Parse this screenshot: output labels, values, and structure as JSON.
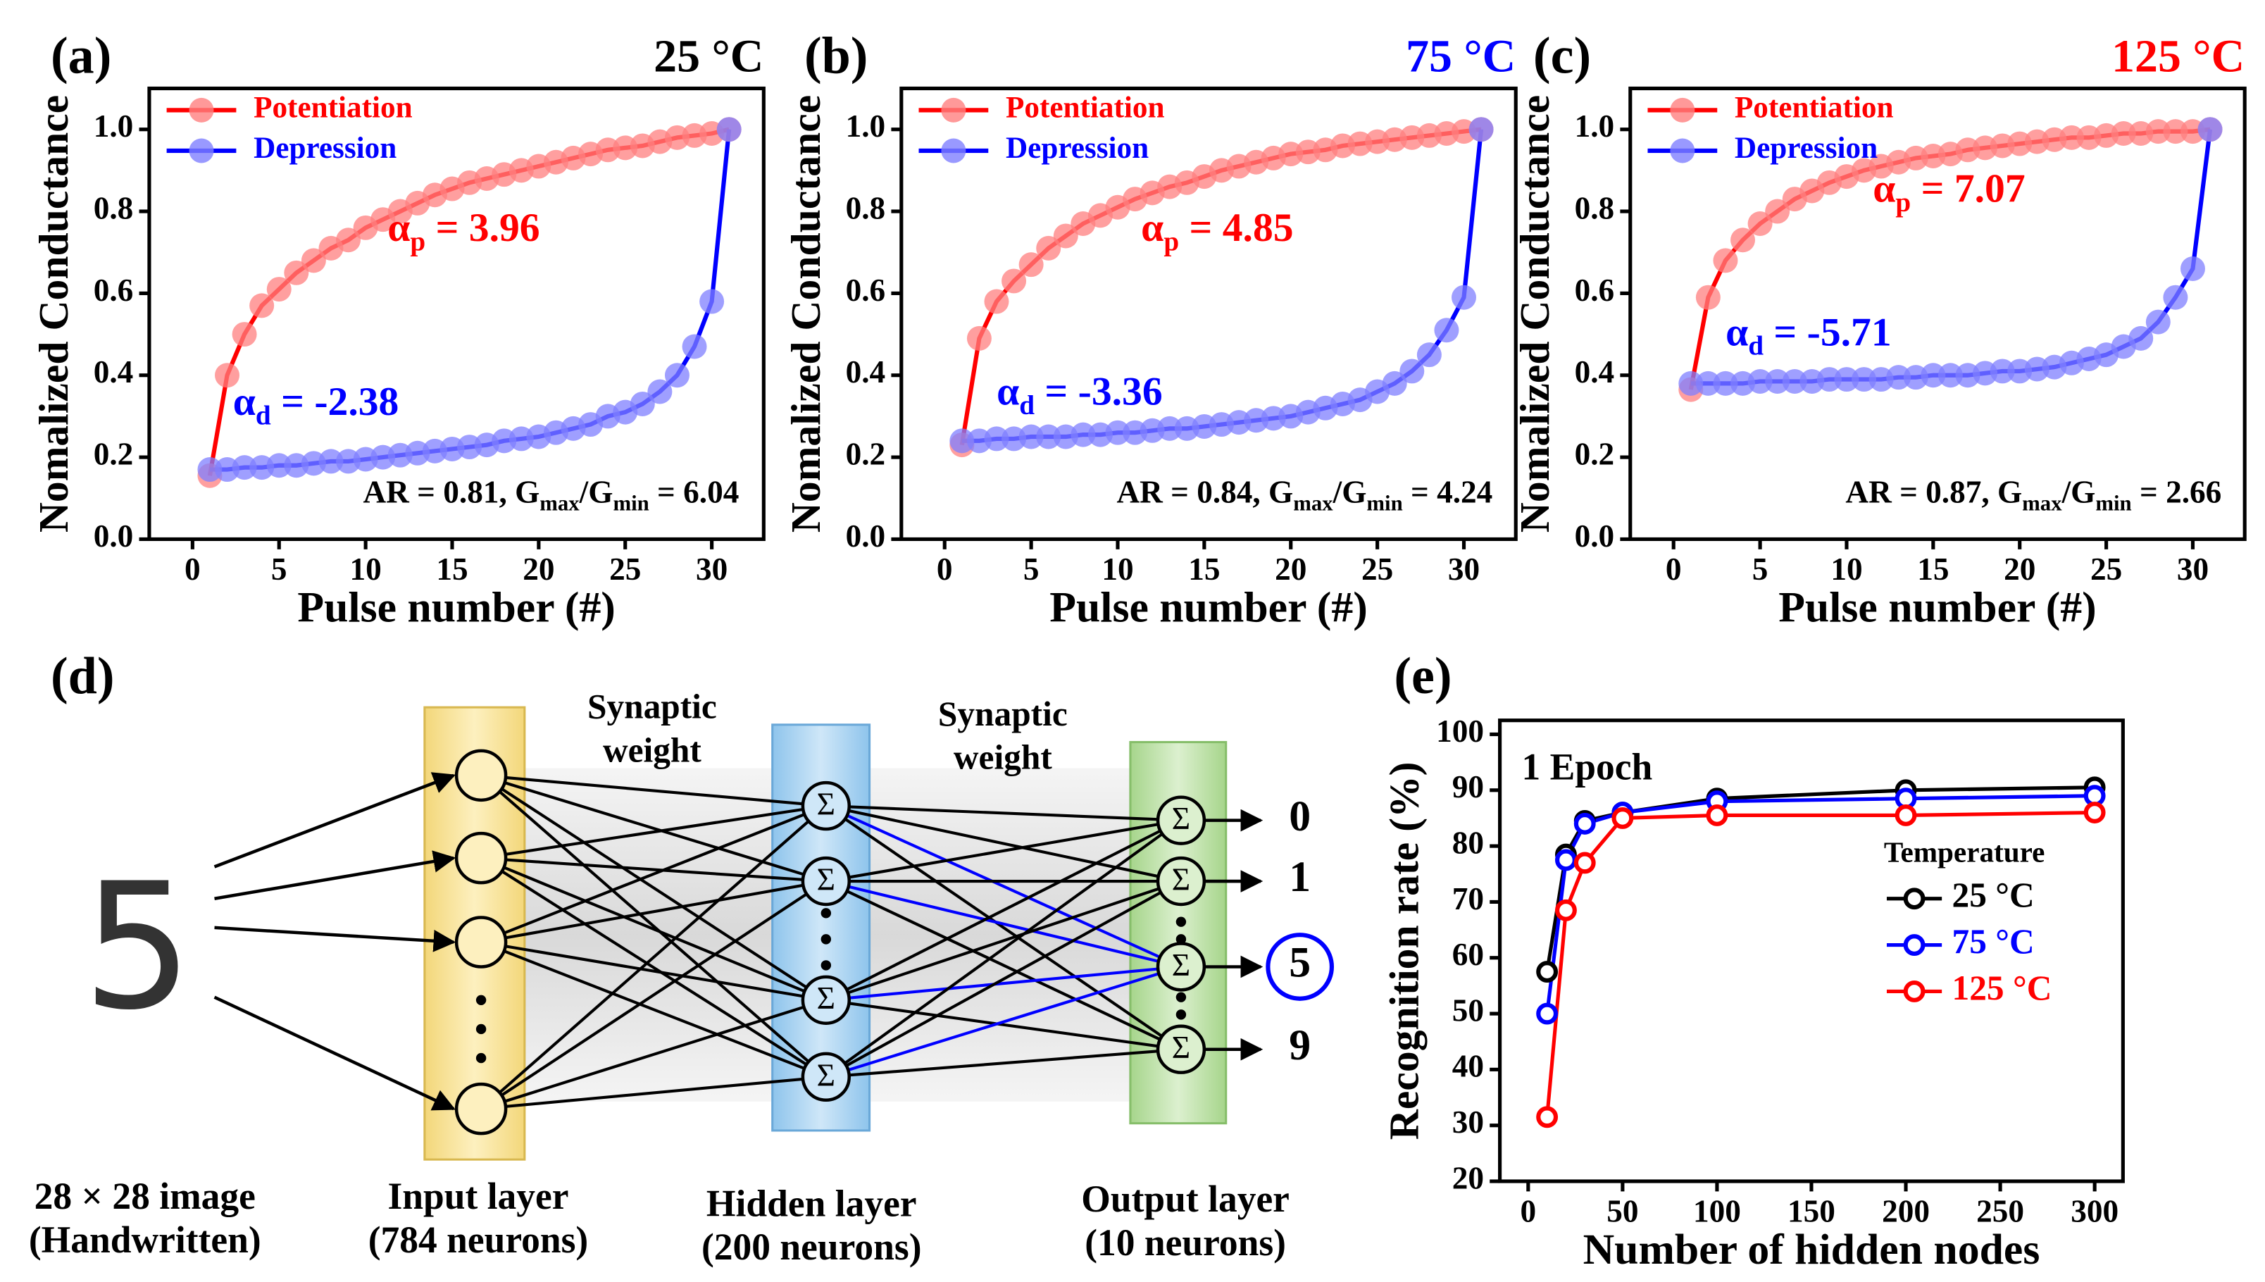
{
  "chart_data": [
    {
      "type": "line",
      "panel": "(a)",
      "title": "25 °C",
      "title_color": "#000000",
      "x_label": "Pulse number (#)",
      "y_label": "Nomalized Conductance",
      "x": [
        1,
        2,
        3,
        4,
        5,
        6,
        7,
        8,
        9,
        10,
        11,
        12,
        13,
        14,
        15,
        16,
        17,
        18,
        19,
        20,
        21,
        22,
        23,
        24,
        25,
        26,
        27,
        28,
        29,
        30,
        31
      ],
      "xlim": [
        -2.5,
        33
      ],
      "ylim": [
        0,
        1.1
      ],
      "xticks": [
        0,
        5,
        10,
        15,
        20,
        25,
        30
      ],
      "yticks": [
        {
          "value": 0,
          "label": "0.0"
        },
        {
          "value": 0.2,
          "label": "0.2"
        },
        {
          "value": 0.4,
          "label": "0.4"
        },
        {
          "value": 0.6,
          "label": "0.6"
        },
        {
          "value": 0.8,
          "label": "0.8"
        },
        {
          "value": 1,
          "label": "1.0"
        }
      ],
      "marker": "filled",
      "series": [
        {
          "name": "Potentiation",
          "color": "#ff0000",
          "marker_color": "#ff7f7f",
          "values": [
            0.155,
            0.4,
            0.5,
            0.57,
            0.61,
            0.65,
            0.68,
            0.71,
            0.73,
            0.76,
            0.78,
            0.8,
            0.82,
            0.84,
            0.855,
            0.87,
            0.88,
            0.89,
            0.9,
            0.91,
            0.92,
            0.93,
            0.94,
            0.95,
            0.955,
            0.96,
            0.97,
            0.98,
            0.985,
            0.99,
            1.0
          ]
        },
        {
          "name": "Depression",
          "color": "#0000ff",
          "marker_color": "#7f7fff",
          "values": [
            0.17,
            0.17,
            0.175,
            0.175,
            0.18,
            0.18,
            0.185,
            0.19,
            0.19,
            0.195,
            0.2,
            0.205,
            0.21,
            0.215,
            0.22,
            0.225,
            0.23,
            0.24,
            0.245,
            0.25,
            0.26,
            0.27,
            0.28,
            0.3,
            0.31,
            0.33,
            0.36,
            0.4,
            0.47,
            0.58,
            1.0
          ]
        }
      ],
      "annotations": [
        {
          "color": "#ff0000",
          "parts": [
            {
              "text": "α"
            },
            {
              "sub": "p"
            },
            {
              "text": " = 3.96"
            }
          ]
        },
        {
          "color": "#0000ff",
          "parts": [
            {
              "text": "α"
            },
            {
              "sub": "d"
            },
            {
              "text": " = -2.38"
            }
          ]
        },
        {
          "color": "#000000",
          "parts": [
            {
              "text": "AR = 0.81,  G"
            },
            {
              "sub": "max"
            },
            {
              "text": "/G"
            },
            {
              "sub": "min"
            },
            {
              "text": " = 6.04"
            }
          ]
        }
      ]
    },
    {
      "type": "line",
      "panel": "(b)",
      "title": "75 °C",
      "title_color": "#0000ff",
      "x_label": "Pulse number (#)",
      "y_label": "Nomalized Conductance",
      "x": [
        1,
        2,
        3,
        4,
        5,
        6,
        7,
        8,
        9,
        10,
        11,
        12,
        13,
        14,
        15,
        16,
        17,
        18,
        19,
        20,
        21,
        22,
        23,
        24,
        25,
        26,
        27,
        28,
        29,
        30,
        31
      ],
      "xlim": [
        -2.5,
        33
      ],
      "ylim": [
        0,
        1.1
      ],
      "xticks": [
        0,
        5,
        10,
        15,
        20,
        25,
        30
      ],
      "yticks": [
        {
          "value": 0,
          "label": "0.0"
        },
        {
          "value": 0.2,
          "label": "0.2"
        },
        {
          "value": 0.4,
          "label": "0.4"
        },
        {
          "value": 0.6,
          "label": "0.6"
        },
        {
          "value": 0.8,
          "label": "0.8"
        },
        {
          "value": 1,
          "label": "1.0"
        }
      ],
      "marker": "filled",
      "series": [
        {
          "name": "Potentiation",
          "color": "#ff0000",
          "marker_color": "#ff7f7f",
          "values": [
            0.23,
            0.49,
            0.58,
            0.63,
            0.67,
            0.71,
            0.74,
            0.77,
            0.79,
            0.81,
            0.83,
            0.845,
            0.86,
            0.87,
            0.885,
            0.9,
            0.91,
            0.92,
            0.93,
            0.94,
            0.945,
            0.95,
            0.96,
            0.965,
            0.97,
            0.975,
            0.98,
            0.985,
            0.99,
            0.995,
            1.0
          ]
        },
        {
          "name": "Depression",
          "color": "#0000ff",
          "marker_color": "#7f7fff",
          "values": [
            0.24,
            0.24,
            0.245,
            0.245,
            0.25,
            0.25,
            0.25,
            0.255,
            0.255,
            0.26,
            0.26,
            0.265,
            0.27,
            0.27,
            0.275,
            0.28,
            0.285,
            0.29,
            0.295,
            0.3,
            0.31,
            0.32,
            0.33,
            0.34,
            0.36,
            0.38,
            0.41,
            0.45,
            0.51,
            0.59,
            1.0
          ]
        }
      ],
      "annotations": [
        {
          "color": "#ff0000",
          "parts": [
            {
              "text": "α"
            },
            {
              "sub": "p"
            },
            {
              "text": " = 4.85"
            }
          ]
        },
        {
          "color": "#0000ff",
          "parts": [
            {
              "text": "α"
            },
            {
              "sub": "d"
            },
            {
              "text": " = -3.36"
            }
          ]
        },
        {
          "color": "#000000",
          "parts": [
            {
              "text": "AR = 0.84,  G"
            },
            {
              "sub": "max"
            },
            {
              "text": "/G"
            },
            {
              "sub": "min"
            },
            {
              "text": " = 4.24"
            }
          ]
        }
      ]
    },
    {
      "type": "line",
      "panel": "(c)",
      "title": "125 °C",
      "title_color": "#ff0000",
      "x_label": "Pulse number (#)",
      "y_label": "Nomalized Conductance",
      "x": [
        1,
        2,
        3,
        4,
        5,
        6,
        7,
        8,
        9,
        10,
        11,
        12,
        13,
        14,
        15,
        16,
        17,
        18,
        19,
        20,
        21,
        22,
        23,
        24,
        25,
        26,
        27,
        28,
        29,
        30,
        31
      ],
      "xlim": [
        -2.5,
        33
      ],
      "ylim": [
        0,
        1.1
      ],
      "xticks": [
        0,
        5,
        10,
        15,
        20,
        25,
        30
      ],
      "yticks": [
        {
          "value": 0,
          "label": "0.0"
        },
        {
          "value": 0.2,
          "label": "0.2"
        },
        {
          "value": 0.4,
          "label": "0.4"
        },
        {
          "value": 0.6,
          "label": "0.6"
        },
        {
          "value": 0.8,
          "label": "0.8"
        },
        {
          "value": 1,
          "label": "1.0"
        }
      ],
      "marker": "filled",
      "series": [
        {
          "name": "Potentiation",
          "color": "#ff0000",
          "marker_color": "#ff7f7f",
          "values": [
            0.365,
            0.59,
            0.68,
            0.73,
            0.77,
            0.8,
            0.83,
            0.85,
            0.87,
            0.885,
            0.9,
            0.91,
            0.92,
            0.93,
            0.935,
            0.94,
            0.95,
            0.955,
            0.96,
            0.965,
            0.97,
            0.975,
            0.98,
            0.98,
            0.985,
            0.99,
            0.99,
            0.995,
            0.995,
            0.995,
            1.0
          ]
        },
        {
          "name": "Depression",
          "color": "#0000ff",
          "marker_color": "#7f7fff",
          "values": [
            0.38,
            0.38,
            0.38,
            0.38,
            0.385,
            0.385,
            0.385,
            0.385,
            0.39,
            0.39,
            0.39,
            0.39,
            0.395,
            0.395,
            0.4,
            0.4,
            0.4,
            0.405,
            0.41,
            0.41,
            0.415,
            0.42,
            0.43,
            0.44,
            0.45,
            0.47,
            0.49,
            0.53,
            0.59,
            0.66,
            1.0
          ]
        }
      ],
      "annotations": [
        {
          "color": "#ff0000",
          "parts": [
            {
              "text": "α"
            },
            {
              "sub": "p"
            },
            {
              "text": " = 7.07"
            }
          ]
        },
        {
          "color": "#0000ff",
          "parts": [
            {
              "text": "α"
            },
            {
              "sub": "d"
            },
            {
              "text": " = -5.71"
            }
          ]
        },
        {
          "color": "#000000",
          "parts": [
            {
              "text": "AR = 0.87,  G"
            },
            {
              "sub": "max"
            },
            {
              "text": "/G"
            },
            {
              "sub": "min"
            },
            {
              "text": " = 2.66"
            }
          ]
        }
      ]
    },
    {
      "type": "line",
      "panel": "(e)",
      "x_label": "Number of hidden nodes",
      "y_label": "Recognition rate (%)",
      "x": [
        10,
        20,
        30,
        50,
        100,
        200,
        300
      ],
      "xlim": [
        -15,
        315
      ],
      "ylim": [
        20,
        102.5
      ],
      "xticks": [
        0,
        50,
        100,
        150,
        200,
        250,
        300
      ],
      "yticks": [
        20,
        30,
        40,
        50,
        60,
        70,
        80,
        90,
        100
      ],
      "marker": "hollow",
      "legend_title": "Temperature",
      "series": [
        {
          "name": "25 °C",
          "color": "#000000",
          "values": [
            57.5,
            78.5,
            84.5,
            86,
            88.5,
            90,
            90.5
          ]
        },
        {
          "name": "75 °C",
          "color": "#0000ff",
          "values": [
            50,
            77.5,
            84,
            86,
            88,
            88.5,
            89
          ]
        },
        {
          "name": "125 °C",
          "color": "#ff0000",
          "values": [
            31.5,
            68.5,
            77,
            85,
            85.5,
            85.5,
            86
          ]
        }
      ],
      "annotations": [
        {
          "color": "#000000",
          "parts": [
            {
              "text": "1 Epoch"
            }
          ]
        }
      ]
    }
  ],
  "diagram": {
    "label": "(d)",
    "input": {
      "digit": "5",
      "caption": [
        "28 × 28 image",
        "(Handwritten)"
      ]
    },
    "layers": [
      {
        "caption": [
          "Input layer",
          "(784 neurons)"
        ]
      },
      {
        "caption": [
          "Hidden layer",
          "(200 neurons)"
        ],
        "symbol": "Σ"
      },
      {
        "caption": [
          "Output layer",
          "(10 neurons)"
        ],
        "symbol": "Σ"
      }
    ],
    "weights": [
      [
        "Synaptic",
        "weight"
      ],
      [
        "Synaptic",
        "weight"
      ]
    ],
    "outputs": [
      "0",
      "1",
      "5",
      "9"
    ]
  }
}
